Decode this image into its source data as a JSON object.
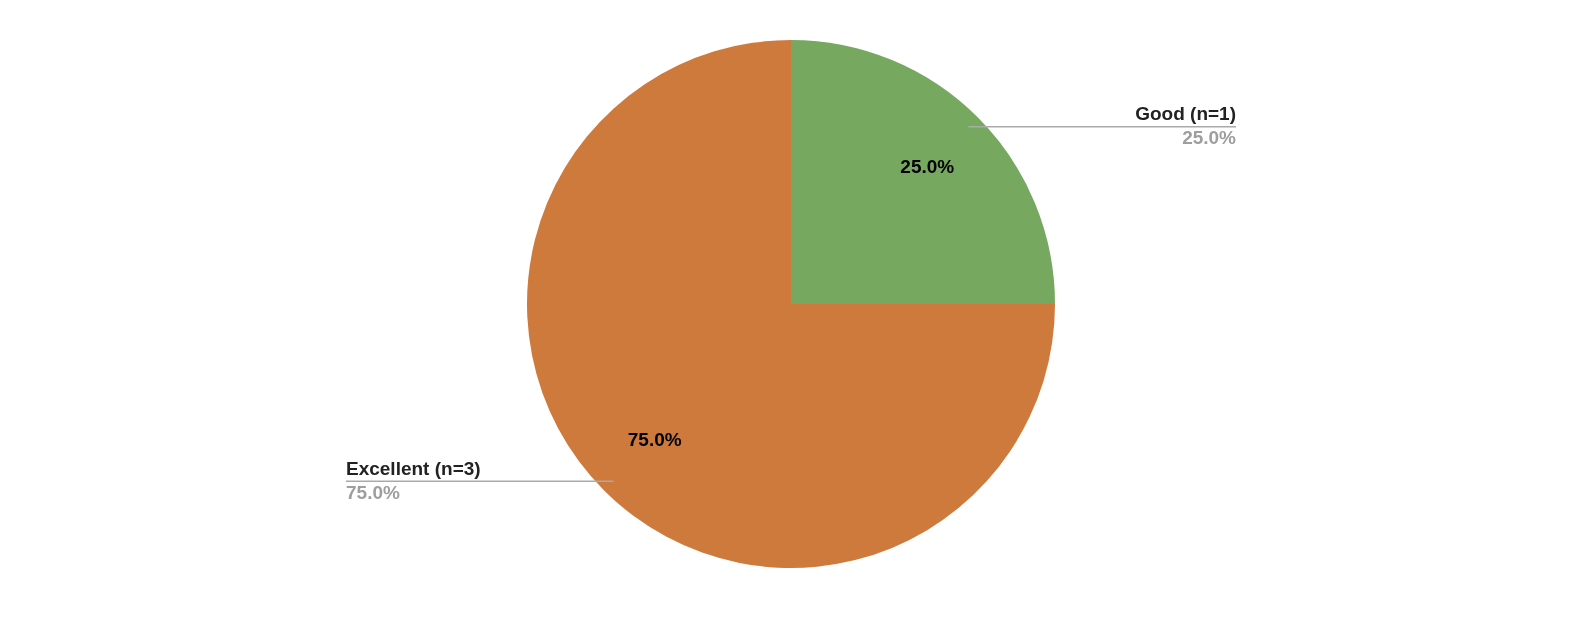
{
  "chart_data": {
    "type": "pie",
    "categories": [
      "Good (n=1)",
      "Excellent (n=3)"
    ],
    "values": [
      25,
      75
    ],
    "colors": [
      "#77a860",
      "#cf7a3d"
    ],
    "value_labels": [
      "25.0%",
      "75.0%"
    ],
    "legend": false
  }
}
